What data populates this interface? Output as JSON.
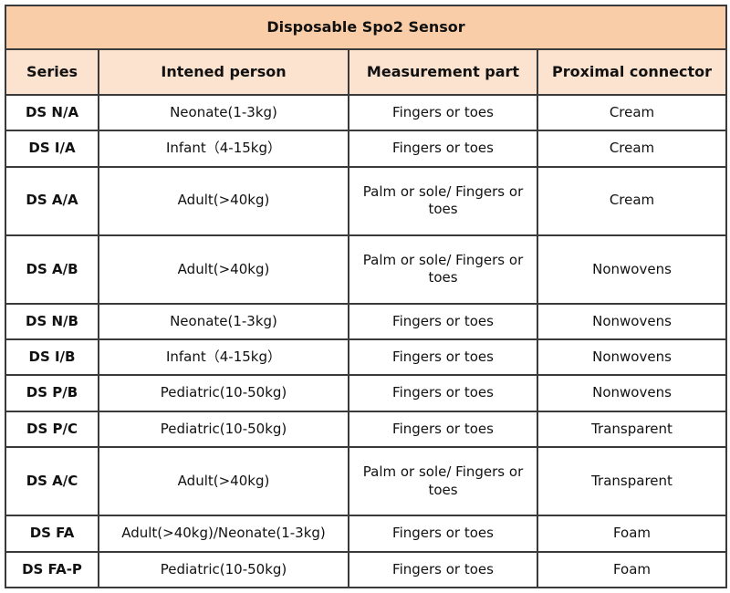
{
  "title": "Disposable Spo2 Sensor",
  "headers": [
    "Series",
    "Intened person",
    "Measurement part",
    "Proximal connector"
  ],
  "colors": {
    "title_bg": "#f9cda7",
    "header_bg": "#fbe3cf",
    "border": "#3a3a3a"
  },
  "rows": [
    [
      "DS N/A",
      "Neonate(1-3kg)",
      "Fingers or toes",
      "Cream"
    ],
    [
      "DS I/A",
      "Infant（4-15kg）",
      "Fingers or toes",
      "Cream"
    ],
    [
      "DS A/A",
      "Adult(>40kg)",
      "Palm or sole/ Fingers or toes",
      "Cream"
    ],
    [
      "DS A/B",
      "Adult(>40kg)",
      "Palm or sole/ Fingers or toes",
      "Nonwovens"
    ],
    [
      "DS N/B",
      "Neonate(1-3kg)",
      "Fingers or toes",
      "Nonwovens"
    ],
    [
      "DS I/B",
      "Infant（4-15kg）",
      "Fingers or toes",
      "Nonwovens"
    ],
    [
      "DS P/B",
      "Pediatric(10-50kg)",
      "Fingers or toes",
      "Nonwovens"
    ],
    [
      "DS P/C",
      "Pediatric(10-50kg)",
      "Fingers or toes",
      "Transparent"
    ],
    [
      "DS A/C",
      "Adult(>40kg)",
      "Palm or sole/ Fingers or toes",
      "Transparent"
    ],
    [
      "DS FA",
      "Adult(>40kg)/Neonate(1-3kg)",
      "Fingers or toes",
      "Foam"
    ],
    [
      "DS FA-P",
      "Pediatric(10-50kg)",
      "Fingers or toes",
      "Foam"
    ]
  ]
}
